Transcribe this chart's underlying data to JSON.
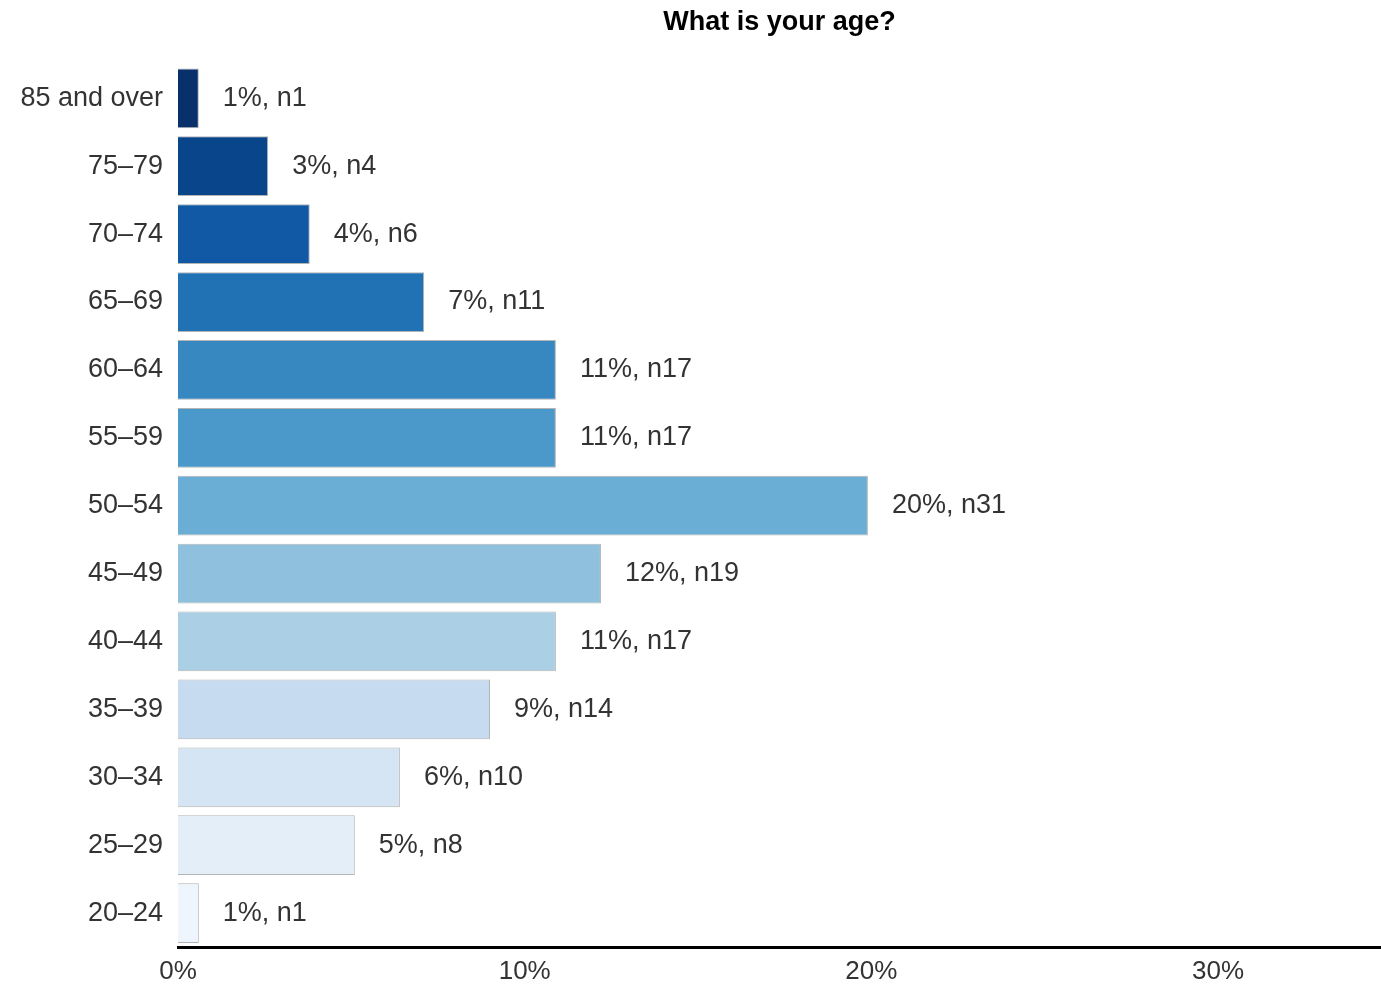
{
  "chart_data": {
    "type": "bar",
    "orientation": "horizontal",
    "title": "What is your age?",
    "categories": [
      "85 and over",
      "75–79",
      "70–74",
      "65–69",
      "60–64",
      "55–59",
      "50–54",
      "45–49",
      "40–44",
      "35–39",
      "30–34",
      "25–29",
      "20–24"
    ],
    "values": [
      0.6,
      2.6,
      3.8,
      7.1,
      10.9,
      10.9,
      19.9,
      12.2,
      10.9,
      9.0,
      6.4,
      5.1,
      0.6
    ],
    "colors": [
      "#08306b",
      "#08458a",
      "#1158a5",
      "#2171b5",
      "#3787c0",
      "#4b98ca",
      "#6aaed6",
      "#8fc1de",
      "#abd0e6",
      "#c6dbef",
      "#d6e5f4",
      "#e3eef8",
      "#eef5fc"
    ],
    "value_labels": [
      "1%, n1",
      "3%, n4",
      "4%, n6",
      "7%, n11",
      "11%, n17",
      "11%, n17",
      "20%, n31",
      "12%, n19",
      "11%, n17",
      "9%, n14",
      "6%, n10",
      "5%, n8",
      "1%, n1"
    ],
    "xlim": [
      0,
      34.7
    ],
    "xticks": [
      {
        "value": 0,
        "label": "0%"
      },
      {
        "value": 10,
        "label": "10%"
      },
      {
        "value": 20,
        "label": "20%"
      },
      {
        "value": 30,
        "label": "30%"
      }
    ],
    "grid": false,
    "legend": false
  }
}
